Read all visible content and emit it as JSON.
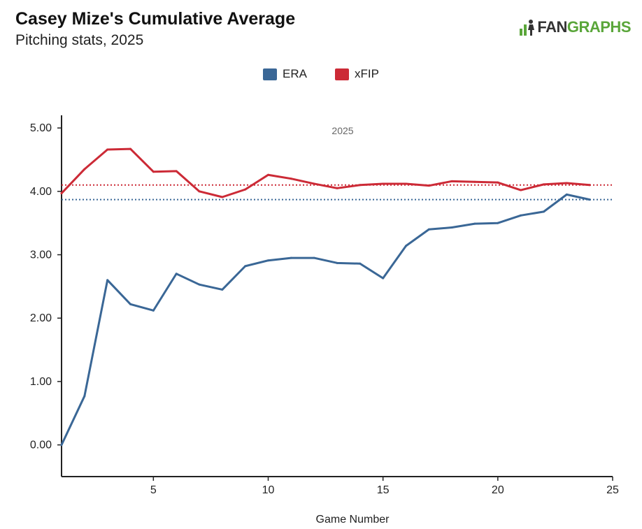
{
  "header": {
    "title": "Casey Mize's Cumulative Average",
    "subtitle": "Pitching stats, 2025"
  },
  "logo": {
    "part1": "FAN",
    "part2": "GRAPHS",
    "icon": "fangraphs-logo-icon"
  },
  "colors": {
    "era": "#3a6796",
    "xfip": "#cc2a36",
    "logo_green": "#5aa63a"
  },
  "chart_data": {
    "type": "line",
    "xlabel": "Game Number",
    "ylabel": "",
    "xlim": [
      1,
      25
    ],
    "ylim": [
      -0.5,
      5.2
    ],
    "x_ticks": [
      5,
      10,
      15,
      20,
      25
    ],
    "x_tick_labels": [
      "5",
      "10",
      "15",
      "20",
      "25"
    ],
    "y_ticks": [
      0,
      1,
      2,
      3,
      4,
      5
    ],
    "y_tick_labels": [
      "0.00",
      "1.00",
      "2.00",
      "3.00",
      "4.00",
      "5.00"
    ],
    "annotation": "2025",
    "legend_position": "top-center",
    "grid": false,
    "x": [
      1,
      2,
      3,
      4,
      5,
      6,
      7,
      8,
      9,
      10,
      11,
      12,
      13,
      14,
      15,
      16,
      17,
      18,
      19,
      20,
      21,
      22,
      23,
      24
    ],
    "series": [
      {
        "name": "ERA",
        "color": "#3a6796",
        "values": [
          0.0,
          0.77,
          2.6,
          2.22,
          2.12,
          2.7,
          2.53,
          2.45,
          2.82,
          2.91,
          2.95,
          2.95,
          2.87,
          2.86,
          2.63,
          3.14,
          3.4,
          3.43,
          3.49,
          3.5,
          3.62,
          3.68,
          3.95,
          3.87
        ],
        "reference": 3.87
      },
      {
        "name": "xFIP",
        "color": "#cc2a36",
        "values": [
          3.97,
          4.35,
          4.66,
          4.67,
          4.31,
          4.32,
          4.0,
          3.91,
          4.03,
          4.26,
          4.2,
          4.12,
          4.05,
          4.1,
          4.12,
          4.12,
          4.09,
          4.16,
          4.15,
          4.14,
          4.02,
          4.11,
          4.13,
          4.1
        ],
        "reference": 4.1
      }
    ]
  }
}
